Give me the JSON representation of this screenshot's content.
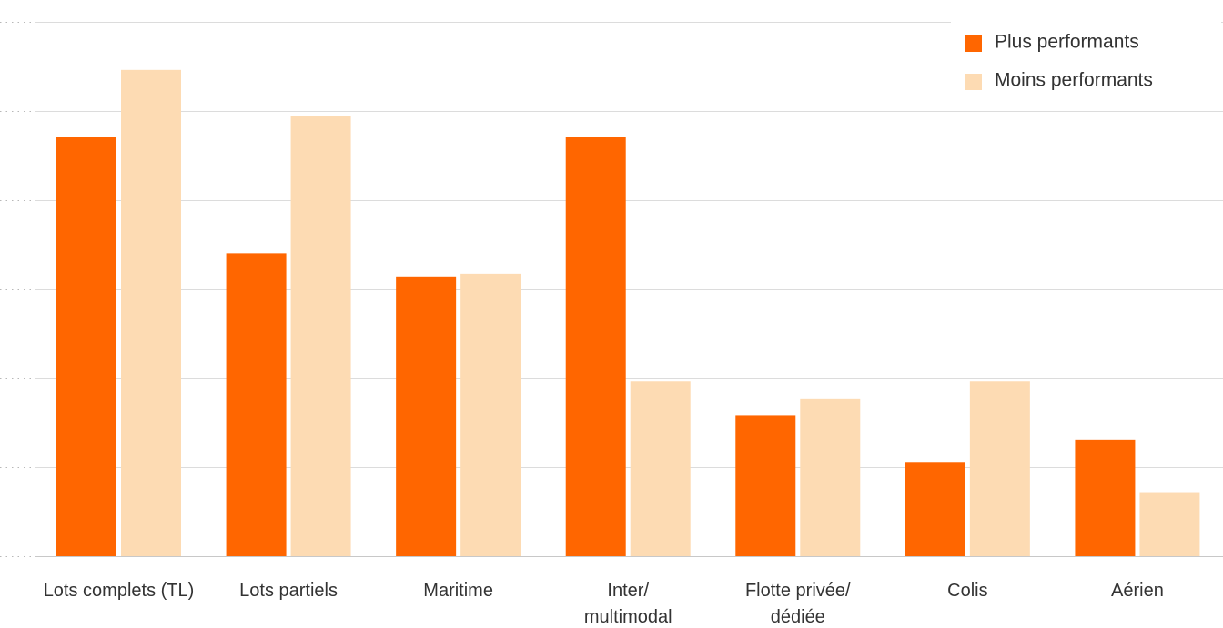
{
  "chart_data": {
    "type": "bar",
    "categories": [
      [
        "Lots complets (TL)"
      ],
      [
        "Lots partiels"
      ],
      [
        "Maritime"
      ],
      [
        "Inter/",
        "multimodal"
      ],
      [
        "Flotte privée/",
        "dédiée"
      ],
      [
        "Colis"
      ],
      [
        "Aérien"
      ]
    ],
    "series": [
      {
        "name": "Plus performants",
        "color": "#ff6600",
        "values": [
          47.1,
          34.0,
          31.4,
          47.1,
          15.8,
          10.5,
          13.1
        ]
      },
      {
        "name": "Moins performants",
        "color": "#fddbb3",
        "values": [
          54.6,
          49.4,
          31.7,
          19.6,
          17.7,
          19.6,
          7.1
        ]
      }
    ],
    "ylim": [
      0,
      60
    ],
    "yticks": [
      0,
      10,
      20,
      30,
      40,
      50,
      60
    ],
    "ytick_labels_shown": false,
    "grid": true,
    "legend": "top-right"
  }
}
